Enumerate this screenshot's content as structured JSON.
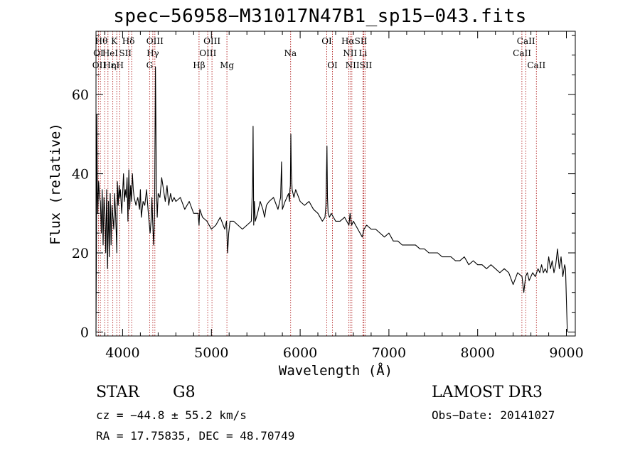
{
  "chart_data": {
    "type": "line",
    "title": "spec−56958−M31017N47B1_sp15−043.fits",
    "xlabel": "Wavelength (Å)",
    "ylabel": "Flux (relative)",
    "xlim": [
      3700,
      9100
    ],
    "ylim": [
      -1,
      76
    ],
    "xticks": [
      4000,
      5000,
      6000,
      7000,
      8000,
      9000
    ],
    "yticks": [
      0,
      20,
      40,
      60
    ],
    "grid": false,
    "series": [
      {
        "name": "spectrum",
        "x": [
          3700,
          3705,
          3710,
          3715,
          3720,
          3730,
          3740,
          3750,
          3760,
          3770,
          3780,
          3790,
          3800,
          3810,
          3820,
          3830,
          3840,
          3850,
          3860,
          3870,
          3880,
          3890,
          3900,
          3910,
          3920,
          3930,
          3935,
          3940,
          3950,
          3960,
          3968,
          3975,
          3990,
          4000,
          4010,
          4020,
          4030,
          4040,
          4050,
          4060,
          4070,
          4080,
          4090,
          4100,
          4110,
          4120,
          4130,
          4150,
          4170,
          4190,
          4200,
          4210,
          4230,
          4250,
          4270,
          4290,
          4310,
          4320,
          4330,
          4340,
          4350,
          4360,
          4370,
          4380,
          4390,
          4400,
          4420,
          4440,
          4460,
          4480,
          4500,
          4520,
          4540,
          4560,
          4580,
          4600,
          4650,
          4700,
          4750,
          4800,
          4850,
          4861,
          4870,
          4900,
          4950,
          5000,
          5050,
          5100,
          5150,
          5170,
          5183,
          5195,
          5210,
          5250,
          5300,
          5350,
          5400,
          5450,
          5465,
          5470,
          5477,
          5485,
          5495,
          5520,
          5550,
          5580,
          5600,
          5620,
          5650,
          5700,
          5750,
          5780,
          5790,
          5800,
          5830,
          5850,
          5870,
          5880,
          5885,
          5890,
          5895,
          5900,
          5910,
          5930,
          5950,
          6000,
          6050,
          6100,
          6150,
          6200,
          6250,
          6280,
          6290,
          6296,
          6302,
          6308,
          6315,
          6330,
          6350,
          6400,
          6450,
          6500,
          6550,
          6563,
          6580,
          6600,
          6650,
          6700,
          6720,
          6750,
          6800,
          6850,
          6900,
          6950,
          7000,
          7050,
          7100,
          7150,
          7200,
          7250,
          7300,
          7350,
          7400,
          7450,
          7500,
          7550,
          7600,
          7650,
          7700,
          7750,
          7800,
          7850,
          7900,
          7950,
          8000,
          8050,
          8100,
          8150,
          8200,
          8250,
          8300,
          8350,
          8400,
          8450,
          8500,
          8520,
          8540,
          8560,
          8580,
          8600,
          8620,
          8650,
          8680,
          8700,
          8720,
          8740,
          8760,
          8780,
          8800,
          8820,
          8840,
          8860,
          8880,
          8900,
          8920,
          8940,
          8960,
          8980,
          8990,
          9000,
          9010
        ],
        "values": [
          0,
          23,
          55,
          35,
          30,
          38,
          34,
          33,
          25,
          36,
          22,
          34,
          30,
          20,
          36,
          16,
          33,
          19,
          35,
          22,
          32,
          29,
          26,
          35,
          30,
          24,
          20,
          38,
          32,
          37,
          34,
          36,
          30,
          35,
          40,
          33,
          36,
          34,
          39,
          28,
          41,
          31,
          37,
          33,
          40,
          36,
          34,
          32,
          34,
          31,
          36,
          29,
          33,
          32,
          36,
          30,
          25,
          28,
          34,
          27,
          22,
          30,
          67,
          37,
          29,
          35,
          34,
          39,
          36,
          33,
          37,
          32,
          35,
          33,
          34,
          33,
          34,
          31,
          33,
          30,
          30,
          27,
          31,
          29,
          28,
          26,
          27,
          29,
          26,
          28,
          20,
          25,
          28,
          28,
          27,
          26,
          27,
          28,
          38,
          52,
          27,
          33,
          28,
          30,
          33,
          31,
          29,
          32,
          33,
          34,
          31,
          34,
          43,
          31,
          33,
          34,
          35,
          33,
          36,
          37,
          50,
          41,
          36,
          34,
          36,
          33,
          32,
          33,
          31,
          30,
          28,
          29,
          32,
          39,
          47,
          34,
          30,
          29,
          30,
          28,
          28,
          29,
          27,
          30,
          27,
          28,
          26,
          24,
          26,
          27,
          26,
          26,
          25,
          24,
          25,
          23,
          23,
          22,
          22,
          22,
          22,
          21,
          21,
          20,
          20,
          20,
          19,
          19,
          19,
          18,
          18,
          19,
          17,
          18,
          17,
          17,
          16,
          17,
          16,
          15,
          16,
          15,
          12,
          15,
          14,
          10,
          14,
          15,
          13,
          14,
          15,
          14,
          16,
          15,
          17,
          15,
          16,
          15,
          19,
          16,
          18,
          15,
          17,
          21,
          16,
          19,
          14,
          17,
          16,
          8,
          0
        ]
      }
    ],
    "line_labels": {
      "row1": [
        {
          "x": 3760,
          "text": "Hθ"
        },
        {
          "x": 3905,
          "text": "K"
        },
        {
          "x": 4065,
          "text": "Hδ"
        },
        {
          "x": 4363,
          "text": "OIII"
        },
        {
          "x": 5007,
          "text": "OIII"
        },
        {
          "x": 6300,
          "text": "OI"
        },
        {
          "x": 6610,
          "text": "HαSII"
        },
        {
          "x": 8545,
          "text": "CaII"
        }
      ],
      "row2": [
        {
          "x": 3727,
          "text": "OI"
        },
        {
          "x": 3860,
          "text": "HeI"
        },
        {
          "x": 4030,
          "text": "SII"
        },
        {
          "x": 4340,
          "text": "Hγ"
        },
        {
          "x": 4960,
          "text": "OIII"
        },
        {
          "x": 5890,
          "text": "Na"
        },
        {
          "x": 6563,
          "text": "NII"
        },
        {
          "x": 6708,
          "text": "Li"
        },
        {
          "x": 8500,
          "text": "CaII"
        }
      ],
      "row3": [
        {
          "x": 3735,
          "text": "OII"
        },
        {
          "x": 3850,
          "text": "Hε"
        },
        {
          "x": 3900,
          "text": "η"
        },
        {
          "x": 3970,
          "text": "H"
        },
        {
          "x": 4304,
          "text": "G"
        },
        {
          "x": 4861,
          "text": "Hβ"
        },
        {
          "x": 5175,
          "text": "Mg"
        },
        {
          "x": 6364,
          "text": "OI"
        },
        {
          "x": 6660,
          "text": "NIISII"
        },
        {
          "x": 8662,
          "text": "CaII"
        }
      ]
    },
    "marker_lines": [
      3727,
      3750,
      3798,
      3835,
      3889,
      3934,
      3968,
      4068,
      4102,
      4304,
      4340,
      4363,
      4861,
      4959,
      5007,
      5175,
      5893,
      6300,
      6364,
      6548,
      6563,
      6583,
      6708,
      6717,
      6731,
      8498,
      8542,
      8662
    ]
  },
  "info": {
    "object_class": "STAR",
    "subclass": "G8",
    "survey": "LAMOST DR3",
    "redshift": "cz = −44.8 ± 55.2 km/s",
    "obs_date": "Obs−Date: 20141027",
    "coords": "RA =  17.75835, DEC =  48.70749"
  }
}
